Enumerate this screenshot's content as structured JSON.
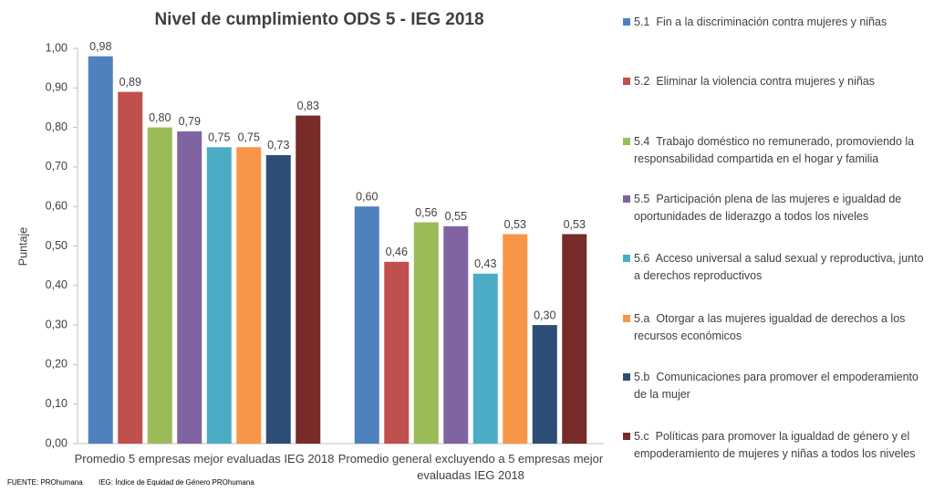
{
  "chart_data": {
    "type": "bar",
    "title": "Nivel de cumplimiento ODS 5 - IEG 2018",
    "y_label": "Puntaje",
    "categories": [
      "Promedio 5 empresas mejor evaluadas IEG 2018",
      "Promedio general excluyendo a 5 empresas mejor evaluadas IEG 2018"
    ],
    "series": [
      {
        "name": "5.1  Fin a la discriminación contra mujeres y niñas",
        "color": "#4f81bd",
        "values": [
          0.98,
          0.6
        ],
        "value_labels": [
          "0,98",
          "0,60"
        ]
      },
      {
        "name": "5.2  Eliminar la violencia contra mujeres y niñas",
        "color": "#c0504d",
        "values": [
          0.89,
          0.46
        ],
        "value_labels": [
          "0,89",
          "0,46"
        ]
      },
      {
        "name": "5.4  Trabajo doméstico no remunerado, promoviendo la responsabilidad compartida en el hogar y familia",
        "color": "#9bbb59",
        "values": [
          0.8,
          0.56
        ],
        "value_labels": [
          "0,80",
          "0,56"
        ]
      },
      {
        "name": "5.5  Participación plena de las mujeres e igualdad de oportunidades de liderazgo a todos los niveles",
        "color": "#8064a2",
        "values": [
          0.79,
          0.55
        ],
        "value_labels": [
          "0,79",
          "0,55"
        ]
      },
      {
        "name": "5.6  Acceso universal a salud sexual y reproductiva, junto a derechos reproductivos",
        "color": "#4bacc6",
        "values": [
          0.75,
          0.43
        ],
        "value_labels": [
          "0,75",
          "0,43"
        ]
      },
      {
        "name": "5.a  Otorgar a las mujeres igualdad de derechos a los recursos económicos",
        "color": "#f79646",
        "values": [
          0.75,
          0.53
        ],
        "value_labels": [
          "0,75",
          "0,53"
        ]
      },
      {
        "name": "5.b  Comunicaciones para promover el empoderamiento de la mujer",
        "color": "#2c4d75",
        "values": [
          0.73,
          0.3
        ],
        "value_labels": [
          "0,73",
          "0,30"
        ]
      },
      {
        "name": "5.c  Políticas para promover la igualdad de género y el empoderamiento de mujeres y niñas a todos los niveles",
        "color": "#772c2a",
        "values": [
          0.83,
          0.53
        ],
        "value_labels": [
          "0,83",
          "0,53"
        ]
      }
    ],
    "ylim": [
      0,
      1
    ],
    "yticks": [
      {
        "value": 0,
        "label": "0,00"
      },
      {
        "value": 0.1,
        "label": "0,10"
      },
      {
        "value": 0.2,
        "label": "0,20"
      },
      {
        "value": 0.3,
        "label": "0,30"
      },
      {
        "value": 0.4,
        "label": "0,40"
      },
      {
        "value": 0.5,
        "label": "0,50"
      },
      {
        "value": 0.6,
        "label": "0,60"
      },
      {
        "value": 0.7,
        "label": "0,70"
      },
      {
        "value": 0.8,
        "label": "0,80"
      },
      {
        "value": 0.9,
        "label": "0,90"
      },
      {
        "value": 1,
        "label": "1,00"
      }
    ],
    "grid": false,
    "legend_position": "right",
    "notes": [
      "FUENTE: PROhumana",
      "IEG: Índice de Equidad de Género PROhumana"
    ]
  }
}
